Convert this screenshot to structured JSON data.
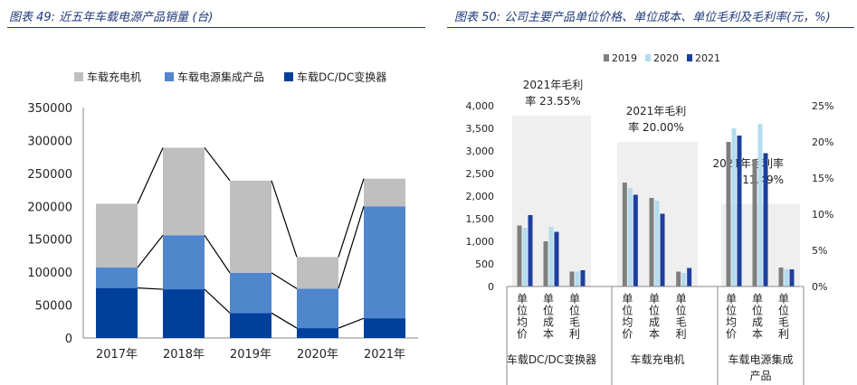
{
  "left_panel": {
    "title": "图表 49:  近五年车载电源产品销量 (台)"
  },
  "right_panel": {
    "title": "图表 50: 公司主要产品单位价格、单位成本、单位毛利及毛利率(元，%)"
  },
  "colors": {
    "title_blue": "#1f3a7a",
    "s_gray": "#bfbfbf",
    "s_mid_blue": "#4f86cc",
    "s_dark_blue": "#003f9a",
    "y2019": "#7f7f7f",
    "y2020": "#b4dcef",
    "y2021": "#1d3f9e",
    "band": "#efefef"
  },
  "chart_data": [
    {
      "type": "bar",
      "stacked": true,
      "title": "近五年车载电源产品销量 (台)",
      "categories": [
        "2017年",
        "2018年",
        "2019年",
        "2020年",
        "2021年"
      ],
      "series": [
        {
          "name": "车载DC/DC变换器",
          "values": [
            76000,
            74000,
            38000,
            15000,
            30000
          ]
        },
        {
          "name": "车载电源集成产品",
          "values": [
            31000,
            82000,
            61000,
            60000,
            170000
          ]
        },
        {
          "name": "车载充电机",
          "values": [
            97000,
            133000,
            140000,
            48000,
            42000
          ]
        }
      ],
      "ylim": [
        0,
        350000
      ],
      "yticks": [
        "0",
        "50000",
        "100000",
        "150000",
        "200000",
        "250000",
        "300000",
        "350000"
      ],
      "legend_position": "top",
      "connector_lines": true
    },
    {
      "type": "bar",
      "title": "公司主要产品单位价格、单位成本、单位毛利及毛利率(元，%)",
      "groups": [
        {
          "name": "车载DC/DC变换器",
          "categories": [
            "单位均价",
            "单位成本",
            "单位毛利"
          ],
          "series": [
            {
              "name": "2019",
              "values": [
                1350,
                1000,
                330
              ]
            },
            {
              "name": "2020",
              "values": [
                1300,
                1320,
                330
              ]
            },
            {
              "name": "2021",
              "values": [
                1580,
                1210,
                360
              ]
            }
          ],
          "annotation": "2021年毛利率 23.55%",
          "annotation_lines": [
            "2021年毛利",
            "率 23.55%"
          ],
          "gross_margin_2021_pct": 23.55
        },
        {
          "name": "车载充电机",
          "categories": [
            "单位均价",
            "单位成本",
            "单位毛利"
          ],
          "series": [
            {
              "name": "2019",
              "values": [
                2300,
                1960,
                330
              ]
            },
            {
              "name": "2020",
              "values": [
                2180,
                1900,
                300
              ]
            },
            {
              "name": "2021",
              "values": [
                2030,
                1610,
                410
              ]
            }
          ],
          "annotation": "2021年毛利率 20.00%",
          "annotation_lines": [
            "2021年毛利",
            "率 20.00%"
          ],
          "gross_margin_2021_pct": 20.0
        },
        {
          "name": "车载电源集成产品",
          "name_lines": [
            "车载电源集成",
            "产品"
          ],
          "categories": [
            "单位均价",
            "单位成本",
            "单位毛利"
          ],
          "series": [
            {
              "name": "2019",
              "values": [
                3200,
                2790,
                420
              ]
            },
            {
              "name": "2020",
              "values": [
                3500,
                3600,
                380
              ]
            },
            {
              "name": "2021",
              "values": [
                3340,
                2950,
                380
              ]
            }
          ],
          "annotation": "2021年毛利率 11.49%",
          "annotation_lines": [
            "2021年毛利率",
            "11.49%"
          ],
          "gross_margin_2021_pct": 11.49
        }
      ],
      "ylim": [
        0,
        4000
      ],
      "yticks": [
        "0",
        "500",
        "1,000",
        "1,500",
        "2,000",
        "2,500",
        "3,000",
        "3,500",
        "4,000"
      ],
      "y2lim": [
        0,
        25
      ],
      "y2ticks": [
        "0%",
        "5%",
        "10%",
        "15%",
        "20%",
        "25%"
      ],
      "legend": [
        "2019",
        "2020",
        "2021"
      ],
      "legend_position": "top"
    }
  ]
}
